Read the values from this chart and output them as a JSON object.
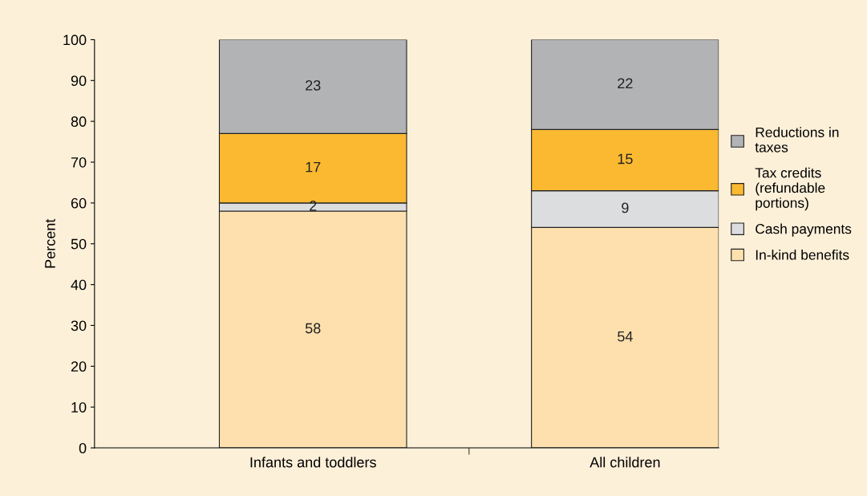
{
  "chart_data": {
    "type": "bar",
    "stacked": true,
    "ylabel": "Percent",
    "categories": [
      "Infants and toddlers",
      "All children"
    ],
    "series": [
      {
        "name": "In-kind benefits",
        "color": "#fde0ae",
        "values": [
          58,
          54
        ]
      },
      {
        "name": "Cash payments",
        "color": "#dcddde",
        "values": [
          2,
          9
        ]
      },
      {
        "name": "Tax credits (refundable portions)",
        "color": "#fbb931",
        "values": [
          17,
          15
        ]
      },
      {
        "name": "Reductions in taxes",
        "color": "#b1b3b4",
        "values": [
          23,
          22
        ]
      }
    ],
    "ylim": [
      0,
      100
    ],
    "yticks": [
      0,
      10,
      20,
      30,
      40,
      50,
      60,
      70,
      80,
      90,
      100
    ],
    "data_labels": true,
    "legend": "right",
    "grid": false
  }
}
